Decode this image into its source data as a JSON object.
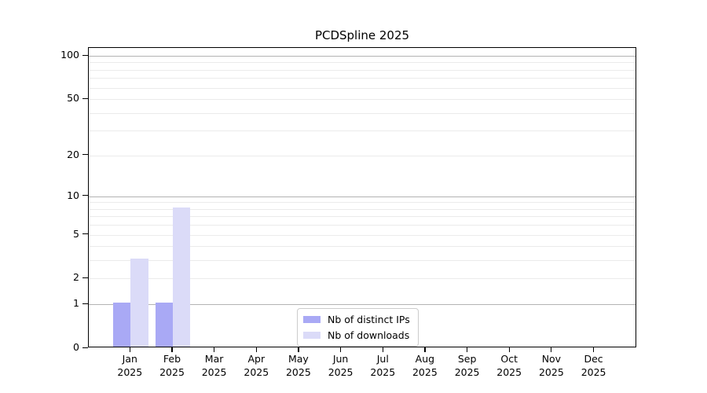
{
  "chart_data": {
    "type": "bar",
    "title": "PCDSpline 2025",
    "categories": [
      "Jan",
      "Feb",
      "Mar",
      "Apr",
      "May",
      "Jun",
      "Jul",
      "Aug",
      "Sep",
      "Oct",
      "Nov",
      "Dec"
    ],
    "year_label": "2025",
    "series": [
      {
        "name": "Nb of distinct IPs",
        "color": "#a9a9f5",
        "values": [
          1,
          1,
          0,
          0,
          0,
          0,
          0,
          0,
          0,
          0,
          0,
          0
        ]
      },
      {
        "name": "Nb of downloads",
        "color": "#dbdbf8",
        "values": [
          3,
          8,
          0,
          0,
          0,
          0,
          0,
          0,
          0,
          0,
          0,
          0
        ]
      }
    ],
    "yticks": [
      0,
      1,
      2,
      5,
      10,
      20,
      50,
      100
    ],
    "ylim": [
      0,
      100
    ],
    "scale": "log1p",
    "grid": {
      "major_lines": [
        1,
        10,
        100
      ],
      "minor_lines": [
        2,
        3,
        4,
        5,
        6,
        7,
        8,
        9,
        20,
        30,
        40,
        50,
        60,
        70,
        80,
        90
      ],
      "major_color": "#b3b3b3",
      "minor_color": "#ebebeb"
    },
    "legend_position": "bottom-center",
    "colors": {
      "axis": "#000000",
      "text": "#000000",
      "background": "#ffffff",
      "legend_border": "#cccccc"
    }
  }
}
